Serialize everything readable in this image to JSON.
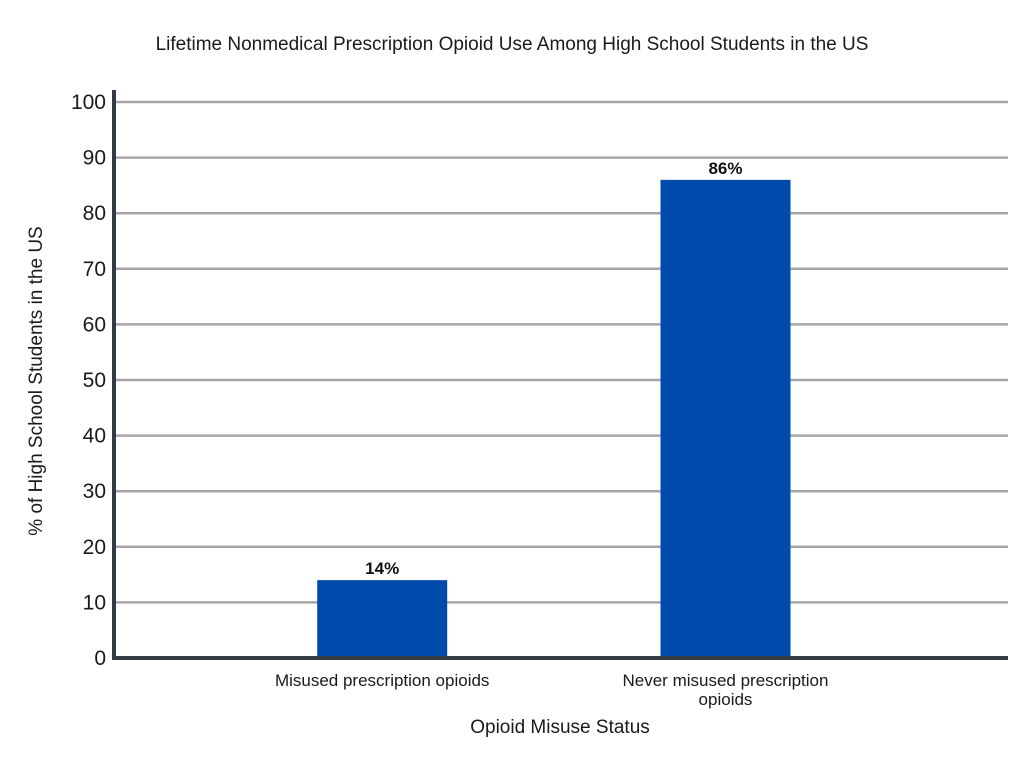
{
  "chart_data": {
    "type": "bar",
    "title": "Lifetime Nonmedical Prescription Opioid Use Among High School Students in the US",
    "xlabel": "Opioid Misuse Status",
    "ylabel": "% of High School Students in the US",
    "categories": [
      [
        "Misused prescription opioids"
      ],
      [
        "Never misused prescription",
        "opioids"
      ]
    ],
    "values": [
      14,
      86
    ],
    "data_labels": [
      "14%",
      "86%"
    ],
    "ylim": [
      0,
      100
    ],
    "yticks": [
      0,
      10,
      20,
      30,
      40,
      50,
      60,
      70,
      80,
      90,
      100
    ],
    "grid": true,
    "legend": "none",
    "colors": {
      "bar": "#004aad",
      "grid": "#a6a6a6",
      "axis": "#333c46"
    }
  }
}
